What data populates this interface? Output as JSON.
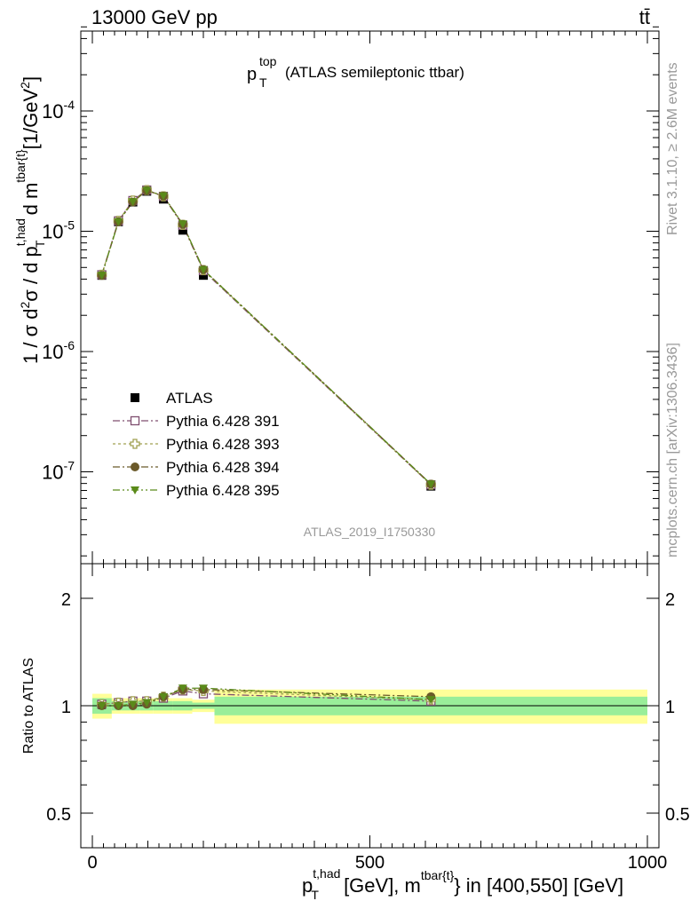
{
  "header": {
    "energy_label": "13000 GeV pp",
    "process_label": "tt̄"
  },
  "main_panel": {
    "title_main": "p",
    "title_sup": "top",
    "title_sub": "T",
    "title_rest": "(ATLAS semileptonic ttbar)",
    "ylabel": "1 / σ d²σ / d p_T^{t,had} d m^{tbar{t}} [1/GeV²]",
    "analysis_id": "ATLAS_2019_I1750330"
  },
  "side_labels": {
    "rivet": "Rivet 3.1.10, ≥ 2.6M events",
    "mcplots": "mcplots.cern.ch [arXiv:1306.3436]"
  },
  "ratio_panel": {
    "ylabel": "Ratio to ATLAS"
  },
  "xaxis": {
    "label": "p_T^{t,had} [GeV], m^{tbar{t}} in [400,550] [GeV]"
  },
  "legend": [
    {
      "name": "ATLAS",
      "color": "#000000",
      "marker": "square-filled"
    },
    {
      "name": "Pythia 6.428 391",
      "color": "#7f4f6f",
      "marker": "square-open"
    },
    {
      "name": "Pythia 6.428 393",
      "color": "#a0a050",
      "marker": "cross-open"
    },
    {
      "name": "Pythia 6.428 394",
      "color": "#6b5a2a",
      "marker": "circle-filled"
    },
    {
      "name": "Pythia 6.428 395",
      "color": "#5a8a1a",
      "marker": "triangle-down-filled"
    }
  ],
  "chart_data": [
    {
      "type": "scatter",
      "title": "p_T^top (ATLAS semileptonic ttbar)",
      "xlabel": "p_T^{t,had} [GeV], m^{tbar{t}} in [400,550] [GeV]",
      "ylabel": "1 / σ d²σ / d p_T^{t,had} d m^{tbar{t}} [1/GeV²]",
      "xlim": [
        -20,
        1010
      ],
      "ylim": [
        1.7e-08,
        0.0005
      ],
      "yscale": "log",
      "ytick_labels": [
        "10^-7",
        "10^-6",
        "10^-5",
        "10^-4"
      ],
      "ytick_values": [
        1e-07,
        1e-06,
        1e-05,
        0.0001
      ],
      "x": [
        17,
        47,
        73,
        98,
        128,
        163,
        200,
        610
      ],
      "series": [
        {
          "name": "ATLAS",
          "values": [
            4.3e-06,
            1.2e-05,
            1.75e-05,
            2.15e-05,
            1.85e-05,
            1.02e-05,
            4.3e-06,
            7.6e-08
          ]
        },
        {
          "name": "Pythia 6.428 391",
          "values": [
            4.35e-06,
            1.22e-05,
            1.8e-05,
            2.2e-05,
            1.95e-05,
            1.12e-05,
            4.7e-06,
            7.8e-08
          ]
        },
        {
          "name": "Pythia 6.428 393",
          "values": [
            4.35e-06,
            1.22e-05,
            1.8e-05,
            2.2e-05,
            1.95e-05,
            1.13e-05,
            4.75e-06,
            7.8e-08
          ]
        },
        {
          "name": "Pythia 6.428 394",
          "values": [
            4.3e-06,
            1.2e-05,
            1.75e-05,
            2.18e-05,
            1.96e-05,
            1.14e-05,
            4.8e-06,
            7.9e-08
          ]
        },
        {
          "name": "Pythia 6.428 395",
          "values": [
            4.3e-06,
            1.2e-05,
            1.76e-05,
            2.19e-05,
            1.97e-05,
            1.15e-05,
            4.8e-06,
            7.9e-08
          ]
        }
      ]
    },
    {
      "type": "scatter",
      "ylabel": "Ratio to ATLAS",
      "xlabel": "p_T^{t,had} [GeV], m^{tbar{t}} in [400,550] [GeV]",
      "xlim": [
        -20,
        1010
      ],
      "ylim": [
        0.35,
        2.25
      ],
      "xtick_labels": [
        "0",
        "500",
        "1000"
      ],
      "xtick_values": [
        0,
        500,
        1000
      ],
      "ytick_labels": [
        "0.5",
        "1",
        "2"
      ],
      "ytick_values": [
        0.5,
        1,
        2
      ],
      "bin_edges": [
        0,
        35,
        60,
        85,
        110,
        145,
        180,
        220,
        1000
      ],
      "band_stat": [
        0.05,
        0.03,
        0.03,
        0.03,
        0.03,
        0.03,
        0.02,
        0.06
      ],
      "band_total": [
        0.08,
        0.05,
        0.05,
        0.05,
        0.05,
        0.05,
        0.04,
        0.11
      ],
      "x": [
        17,
        47,
        73,
        98,
        128,
        163,
        200,
        610
      ],
      "series": [
        {
          "name": "Pythia 6.428 391",
          "values": [
            1.01,
            1.02,
            1.03,
            1.03,
            1.05,
            1.1,
            1.08,
            1.03
          ]
        },
        {
          "name": "Pythia 6.428 393",
          "values": [
            1.01,
            1.02,
            1.03,
            1.03,
            1.06,
            1.11,
            1.1,
            1.04
          ]
        },
        {
          "name": "Pythia 6.428 394",
          "values": [
            1.0,
            1.0,
            1.0,
            1.01,
            1.06,
            1.11,
            1.11,
            1.06
          ]
        },
        {
          "name": "Pythia 6.428 395",
          "values": [
            1.0,
            1.0,
            1.01,
            1.02,
            1.06,
            1.12,
            1.12,
            1.04
          ]
        }
      ]
    }
  ]
}
